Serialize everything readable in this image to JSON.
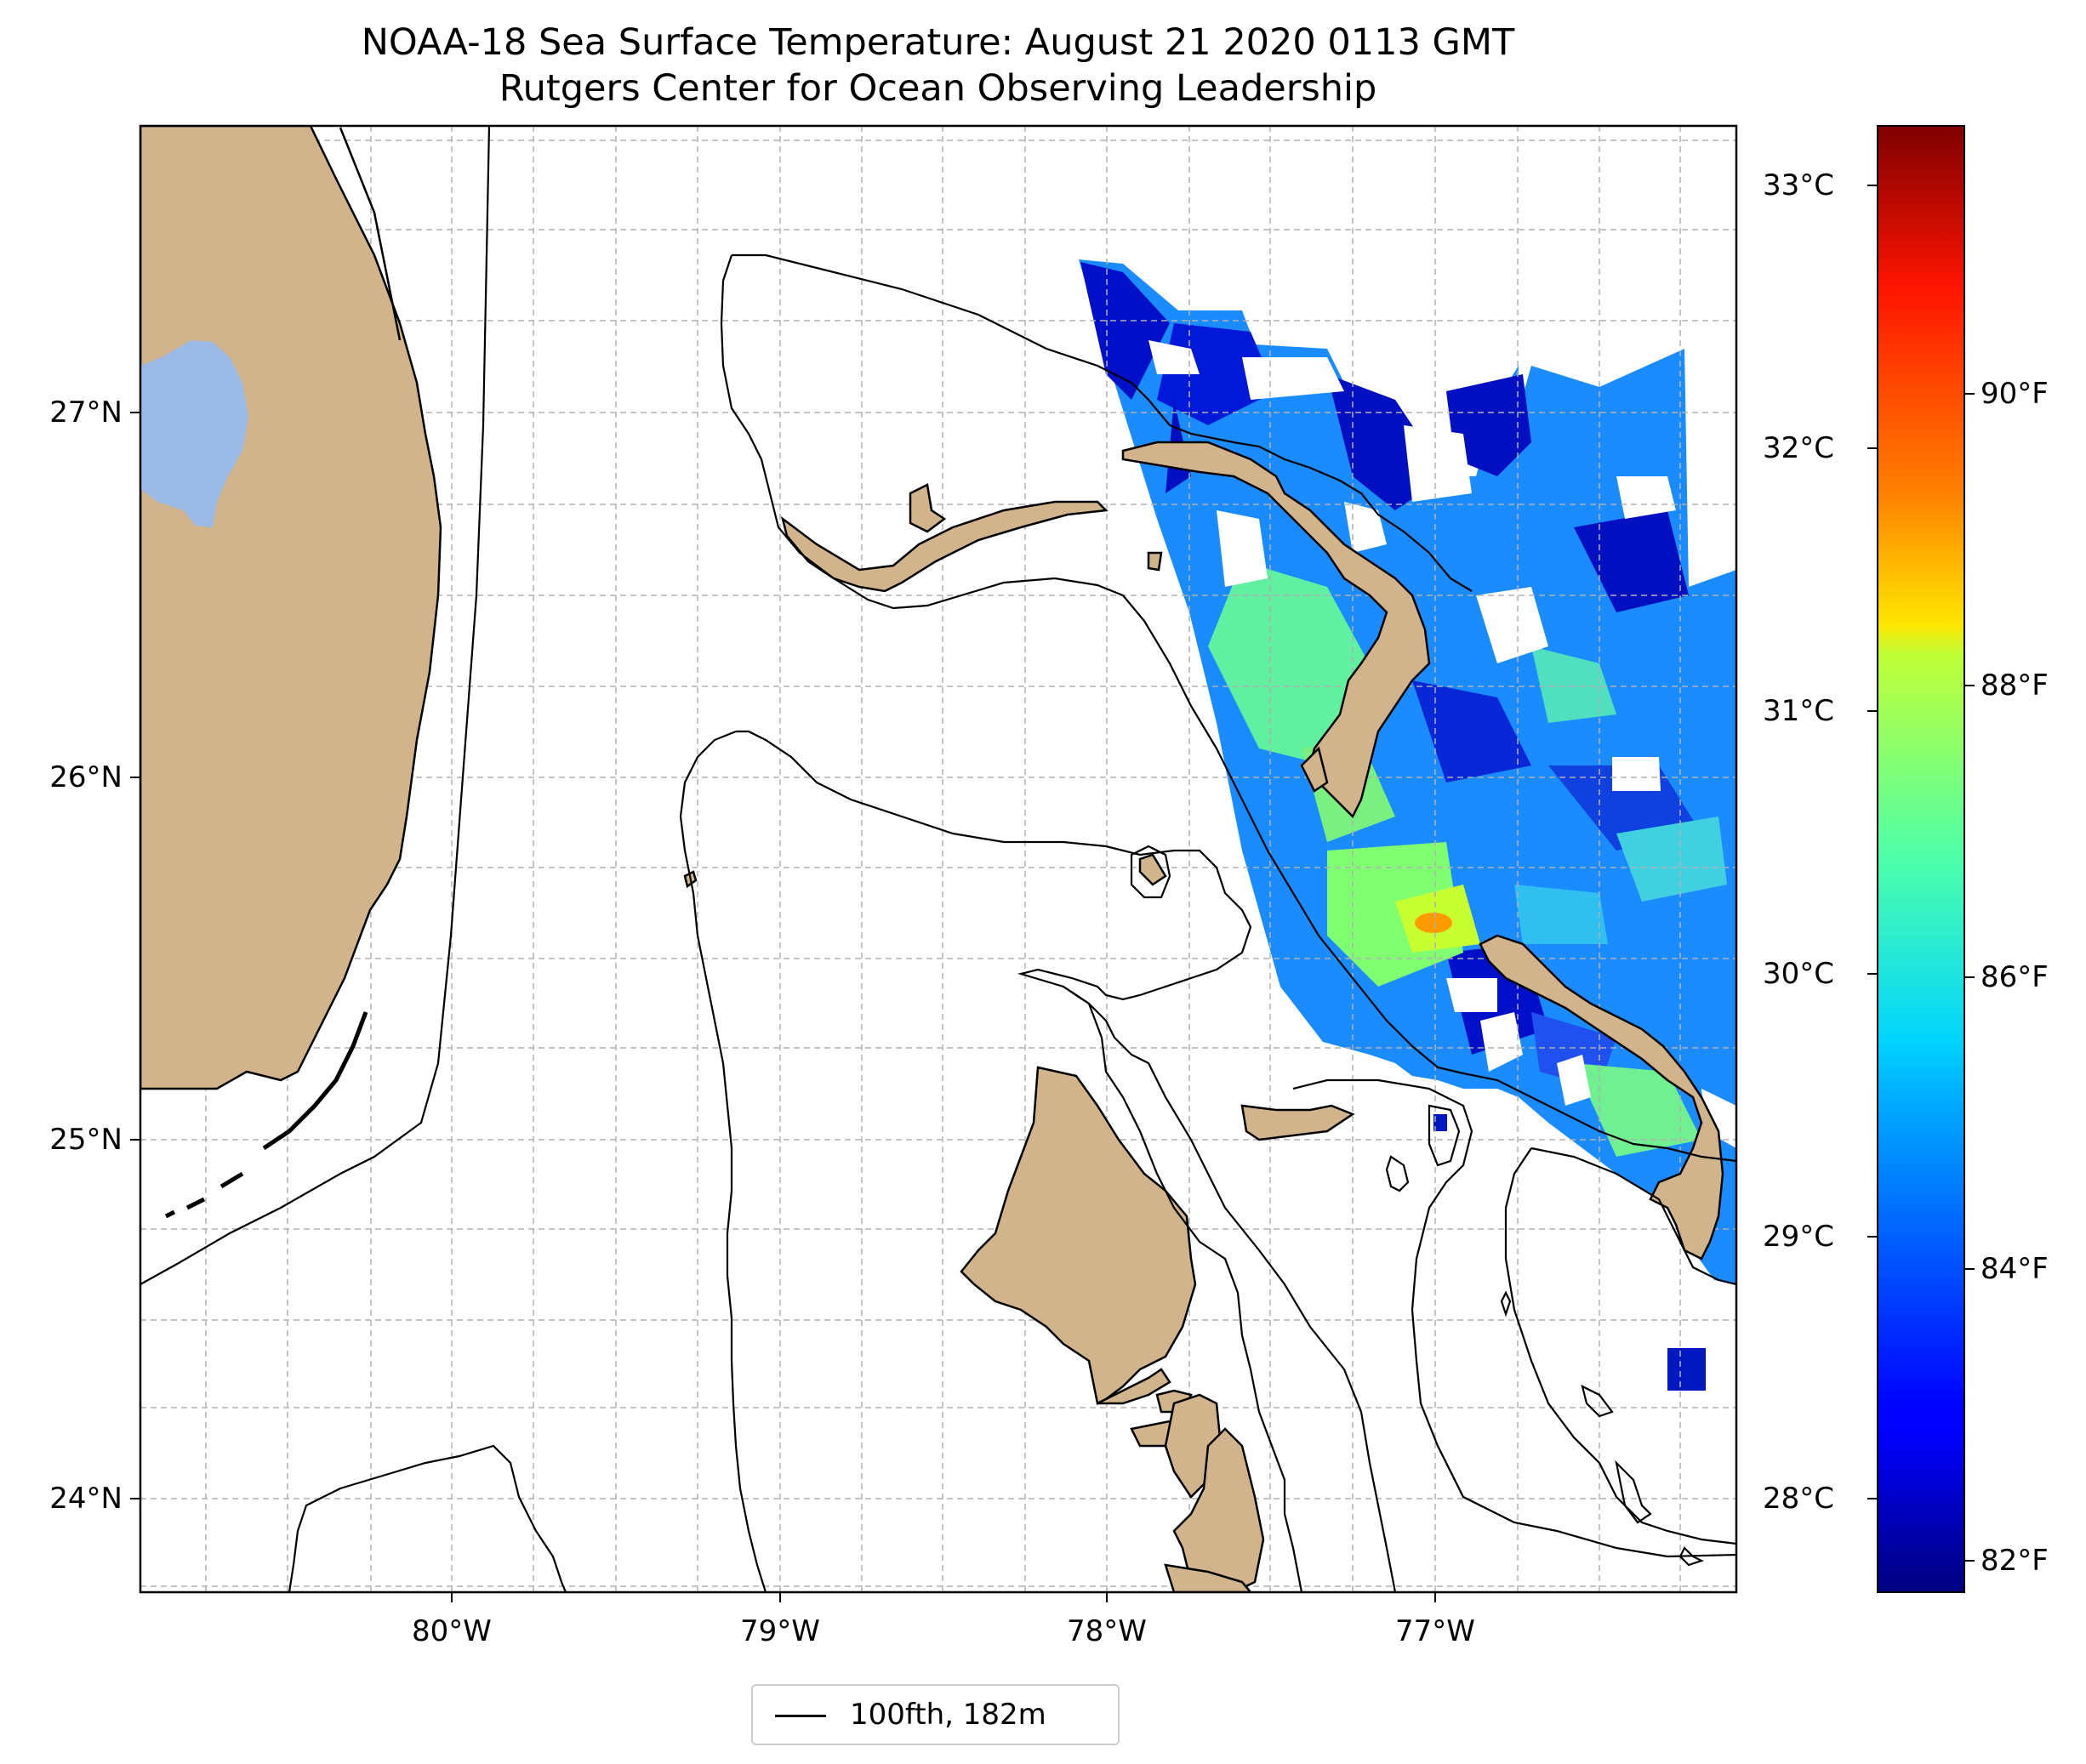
{
  "title": "NOAA-18 Sea Surface Temperature: August 21 2020 0113 GMT",
  "subtitle": "Rutgers Center for Ocean Observing Leadership",
  "map": {
    "lat_ticks": [
      "27°N",
      "26°N",
      "25°N",
      "24°N"
    ],
    "lon_ticks": [
      "80°W",
      "79°W",
      "78°W",
      "77°W"
    ],
    "colors": {
      "land": "#d2b48c",
      "lake": "#9bbbe6",
      "gridline": "#b0b0b0",
      "contour": "#000000"
    }
  },
  "colorbar": {
    "celsius_ticks": [
      "33°C",
      "32°C",
      "31°C",
      "30°C",
      "29°C",
      "28°C"
    ],
    "fahrenheit_ticks": [
      "90°F",
      "88°F",
      "86°F",
      "84°F",
      "82°F"
    ],
    "colormap": "jet"
  },
  "legend": {
    "label": "100fth, 182m"
  }
}
